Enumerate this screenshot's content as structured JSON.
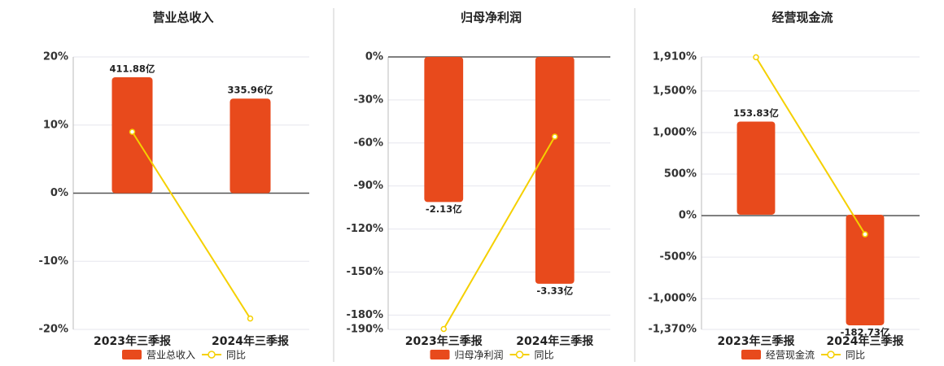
{
  "chart_data": [
    {
      "type": "bar",
      "title": "营业总收入",
      "categories": [
        "2023年三季报",
        "2024年三季报"
      ],
      "ylim": [
        -20,
        20
      ],
      "yticks": [
        {
          "value": 20,
          "label": "20%"
        },
        {
          "value": 10,
          "label": "10%"
        },
        {
          "value": 0,
          "label": "0%"
        },
        {
          "value": -10,
          "label": "-10%"
        },
        {
          "value": -20,
          "label": "-20%"
        }
      ],
      "y2lim": [
        -484,
        484
      ],
      "series": [
        {
          "name": "营业总收入",
          "type": "bar",
          "axis": "y2",
          "color": "#e84a1c",
          "values": [
            411.88,
            335.96
          ],
          "value_labels": [
            "411.88亿",
            "335.96亿"
          ]
        },
        {
          "name": "同比",
          "type": "line",
          "color": "#f5d000",
          "values": [
            9,
            -18.4
          ]
        }
      ]
    },
    {
      "type": "bar",
      "title": "归母净利润",
      "categories": [
        "2023年三季报",
        "2024年三季报"
      ],
      "ylim": [
        -190,
        0
      ],
      "yticks": [
        {
          "value": 0,
          "label": "0%"
        },
        {
          "value": -30,
          "label": "-30%"
        },
        {
          "value": -60,
          "label": "-60%"
        },
        {
          "value": -90,
          "label": "-90%"
        },
        {
          "value": -120,
          "label": "-120%"
        },
        {
          "value": -150,
          "label": "-150%"
        },
        {
          "value": -180,
          "label": "-180%"
        },
        {
          "value": -190,
          "label": "-190%"
        }
      ],
      "y2lim": [
        -4,
        0
      ],
      "series": [
        {
          "name": "归母净利润",
          "type": "bar",
          "axis": "y2",
          "color": "#e84a1c",
          "values": [
            -2.13,
            -3.33
          ],
          "value_labels": [
            "-2.13亿",
            "-3.33亿"
          ]
        },
        {
          "name": "同比",
          "type": "line",
          "color": "#f5d000",
          "values": [
            -189.7,
            -55.6
          ]
        }
      ]
    },
    {
      "type": "bar",
      "title": "经营现金流",
      "categories": [
        "2023年三季报",
        "2024年三季报"
      ],
      "ylim": [
        -1370,
        1910
      ],
      "yticks": [
        {
          "value": 1910,
          "label": "1,910%"
        },
        {
          "value": 1500,
          "label": "1,500%"
        },
        {
          "value": 1000,
          "label": "1,000%"
        },
        {
          "value": 500,
          "label": "500%"
        },
        {
          "value": 0,
          "label": "0%"
        },
        {
          "value": -500,
          "label": "-500%"
        },
        {
          "value": -1000,
          "label": "-1,000%"
        },
        {
          "value": -1370,
          "label": "-1,370%"
        }
      ],
      "y2lim": [
        -189.5,
        260.6
      ],
      "series": [
        {
          "name": "经营现金流",
          "type": "bar",
          "axis": "y2",
          "color": "#e84a1c",
          "values": [
            153.83,
            -182.73
          ],
          "value_labels": [
            "153.83亿",
            "-182.73亿"
          ]
        },
        {
          "name": "同比",
          "type": "line",
          "color": "#f5d000",
          "values": [
            1906,
            -225
          ]
        }
      ]
    }
  ]
}
